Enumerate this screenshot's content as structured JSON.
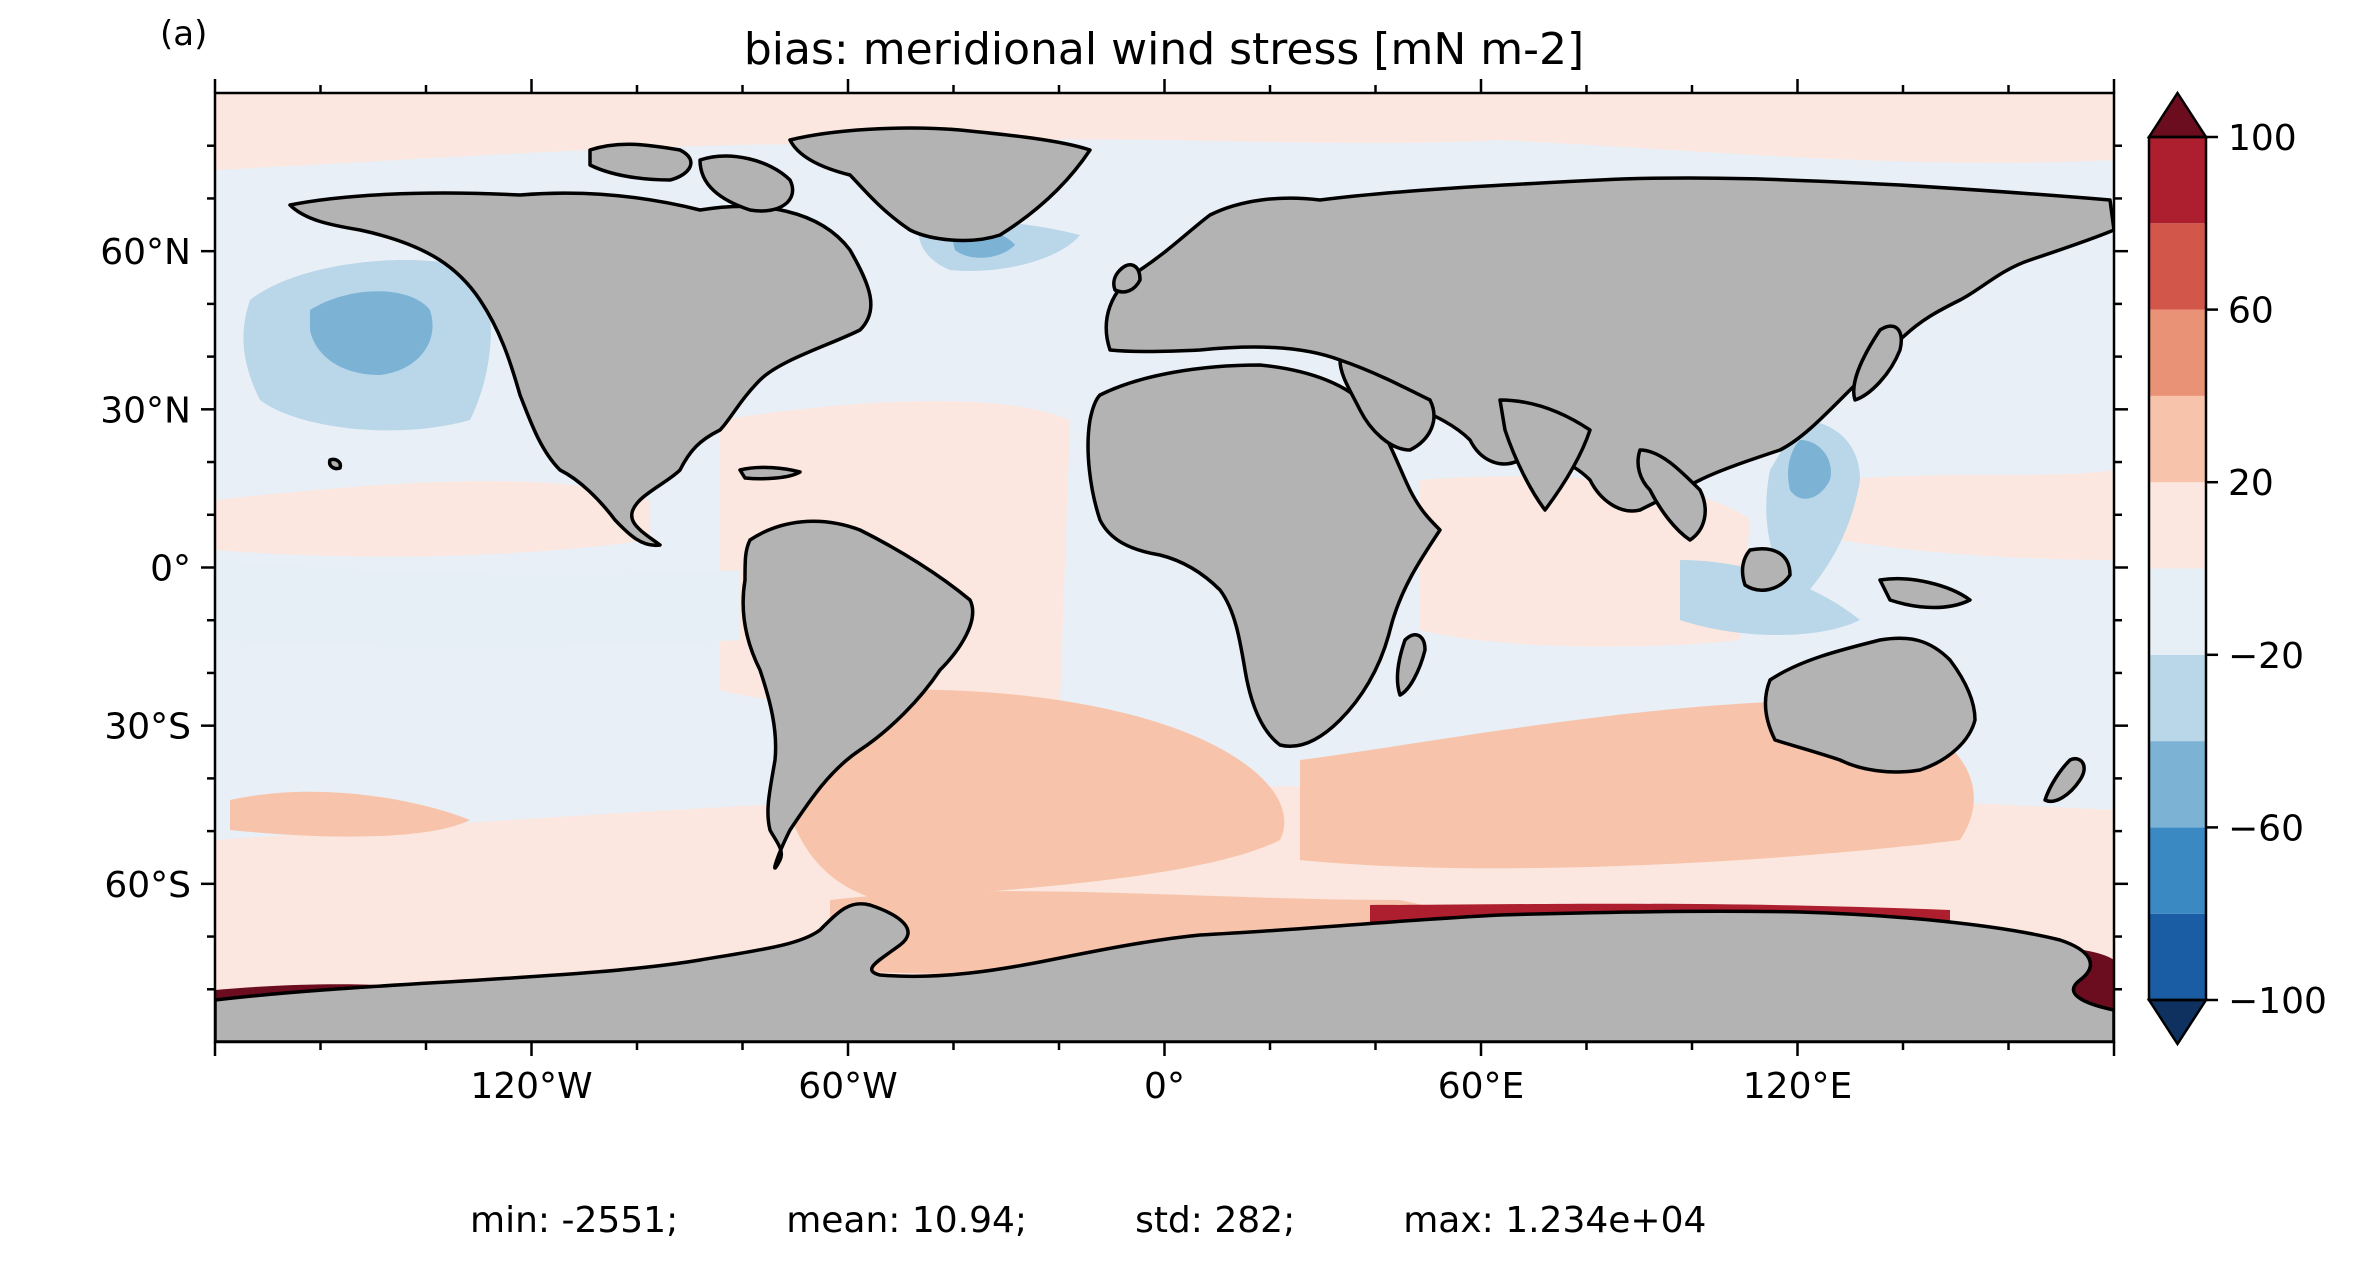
{
  "panel_label": "(a)",
  "title": "bias: meridional wind stress [mN m-2]",
  "map": {
    "projection": "PlateCarree",
    "lon_range": [
      -180,
      180
    ],
    "lat_range": [
      -90,
      90
    ],
    "land_color": "#b3b3b3",
    "coastline_color": "#000000"
  },
  "lat_ticks": [
    {
      "value": 60,
      "label": "60°N"
    },
    {
      "value": 30,
      "label": "30°N"
    },
    {
      "value": 0,
      "label": "0°"
    },
    {
      "value": -30,
      "label": "30°S"
    },
    {
      "value": -60,
      "label": "60°S"
    }
  ],
  "lon_ticks": [
    {
      "value": -120,
      "label": "120°W"
    },
    {
      "value": -60,
      "label": "60°W"
    },
    {
      "value": 0,
      "label": "0°"
    },
    {
      "value": 60,
      "label": "60°E"
    },
    {
      "value": 120,
      "label": "120°E"
    }
  ],
  "colorbar": {
    "levels": [
      -100,
      -80,
      -60,
      -40,
      -20,
      0,
      20,
      40,
      60,
      80,
      100
    ],
    "tick_values": [
      100,
      60,
      20,
      -20,
      -60,
      -100
    ],
    "tick_labels": [
      "100",
      "60",
      "20",
      "−20",
      "−60",
      "−100"
    ],
    "colors": [
      "#1a5da4",
      "#3a89c2",
      "#7cb3d5",
      "#b9d7e9",
      "#e6eff5",
      "#fbe7df",
      "#f7c4ab",
      "#ea9275",
      "#d2574a",
      "#ad1f2f"
    ],
    "under_color": "#0e3160",
    "over_color": "#6b0d1e",
    "extend": "both"
  },
  "stats": {
    "min": "min: -2551;",
    "mean": "mean: 10.94;",
    "std": "std: 282;",
    "max": "max: 1.234e+04"
  }
}
